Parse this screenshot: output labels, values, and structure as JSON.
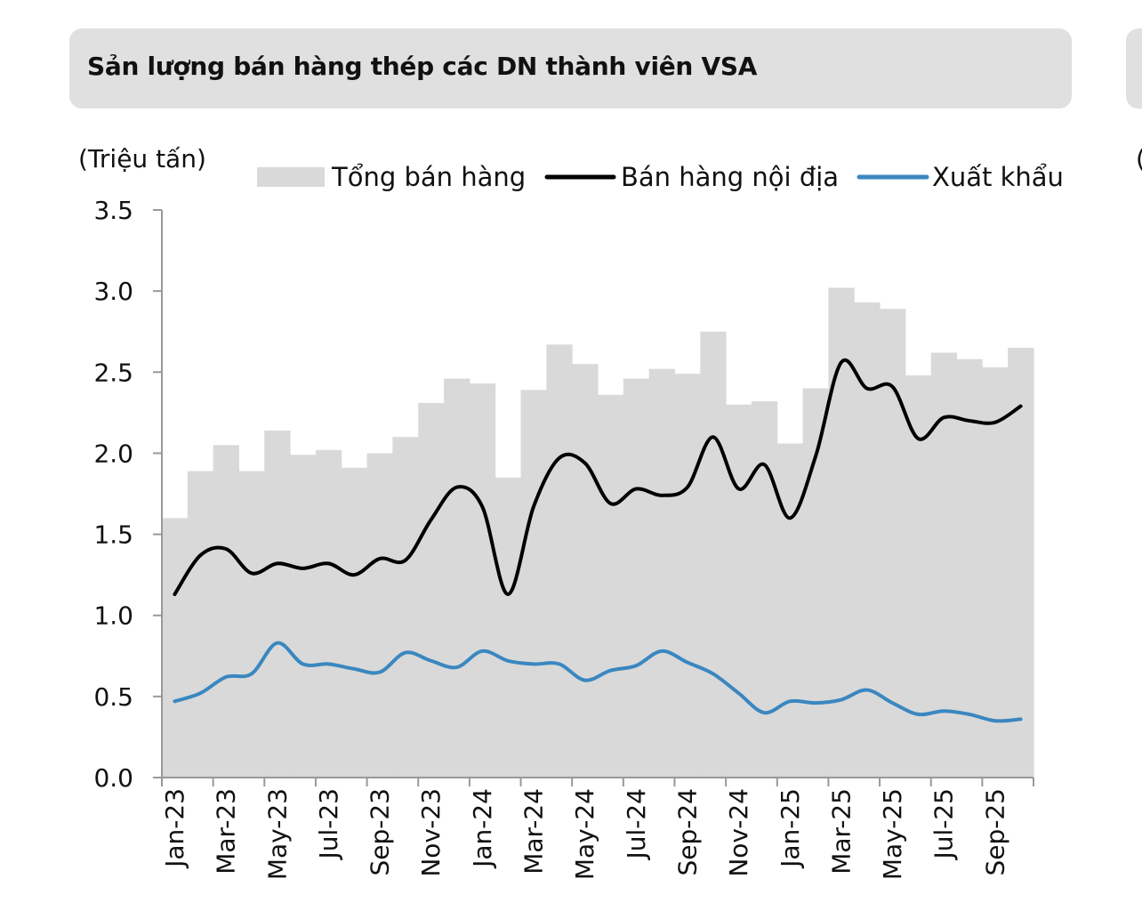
{
  "title": "Sản lượng bán hàng thép các DN thành viên VSA",
  "chart_data": {
    "type": "bar+line",
    "title": "Sản lượng bán hàng thép các DN thành viên VSA",
    "ylabel": "(Triệu tấn)",
    "xlabel": "",
    "ylim": [
      0,
      3.5
    ],
    "yticks": [
      "0.0",
      "0.5",
      "1.0",
      "1.5",
      "2.0",
      "2.5",
      "3.0",
      "3.5"
    ],
    "grid": false,
    "legend_position": "top",
    "categories": [
      "Jan-23",
      "Feb-23",
      "Mar-23",
      "Apr-23",
      "May-23",
      "Jun-23",
      "Jul-23",
      "Aug-23",
      "Sep-23",
      "Oct-23",
      "Nov-23",
      "Dec-23",
      "Jan-24",
      "Feb-24",
      "Mar-24",
      "Apr-24",
      "May-24",
      "Jun-24",
      "Jul-24",
      "Aug-24",
      "Sep-24",
      "Oct-24",
      "Nov-24",
      "Dec-24",
      "Jan-25",
      "Feb-25",
      "Mar-25",
      "Apr-25",
      "May-25",
      "Jun-25",
      "Jul-25",
      "Aug-25",
      "Sep-25",
      "Oct-25"
    ],
    "xtick_labels": [
      "Jan-23",
      "Mar-23",
      "May-23",
      "Jul-23",
      "Sep-23",
      "Nov-23",
      "Jan-24",
      "Mar-24",
      "May-24",
      "Jul-24",
      "Sep-24",
      "Nov-24",
      "Jan-25",
      "Mar-25",
      "May-25",
      "Jul-25",
      "Sep-25"
    ],
    "series": [
      {
        "name": "Tổng bán hàng",
        "type": "bar",
        "color": "#d9d9d9",
        "values": [
          1.6,
          1.89,
          2.05,
          1.89,
          2.14,
          1.99,
          2.02,
          1.91,
          2.0,
          2.1,
          2.31,
          2.46,
          2.43,
          1.85,
          2.39,
          2.67,
          2.55,
          2.36,
          2.46,
          2.52,
          2.49,
          2.75,
          2.3,
          2.32,
          2.06,
          2.4,
          3.02,
          2.93,
          2.89,
          2.48,
          2.62,
          2.58,
          2.53,
          2.65
        ]
      },
      {
        "name": "Bán hàng nội địa",
        "type": "line",
        "color": "#000000",
        "values": [
          1.13,
          1.37,
          1.41,
          1.26,
          1.32,
          1.29,
          1.32,
          1.25,
          1.35,
          1.34,
          1.59,
          1.79,
          1.67,
          1.13,
          1.67,
          1.97,
          1.94,
          1.69,
          1.78,
          1.74,
          1.79,
          2.1,
          1.78,
          1.93,
          1.6,
          1.98,
          2.56,
          2.4,
          2.41,
          2.09,
          2.22,
          2.2,
          2.19,
          2.29
        ]
      },
      {
        "name": "Xuất khẩu",
        "type": "line",
        "color": "#3a87c0",
        "values": [
          0.47,
          0.52,
          0.62,
          0.64,
          0.83,
          0.7,
          0.7,
          0.67,
          0.65,
          0.77,
          0.72,
          0.68,
          0.78,
          0.72,
          0.7,
          0.7,
          0.6,
          0.66,
          0.69,
          0.78,
          0.71,
          0.64,
          0.52,
          0.4,
          0.47,
          0.46,
          0.48,
          0.54,
          0.46,
          0.39,
          0.41,
          0.39,
          0.35,
          0.36
        ]
      }
    ]
  }
}
